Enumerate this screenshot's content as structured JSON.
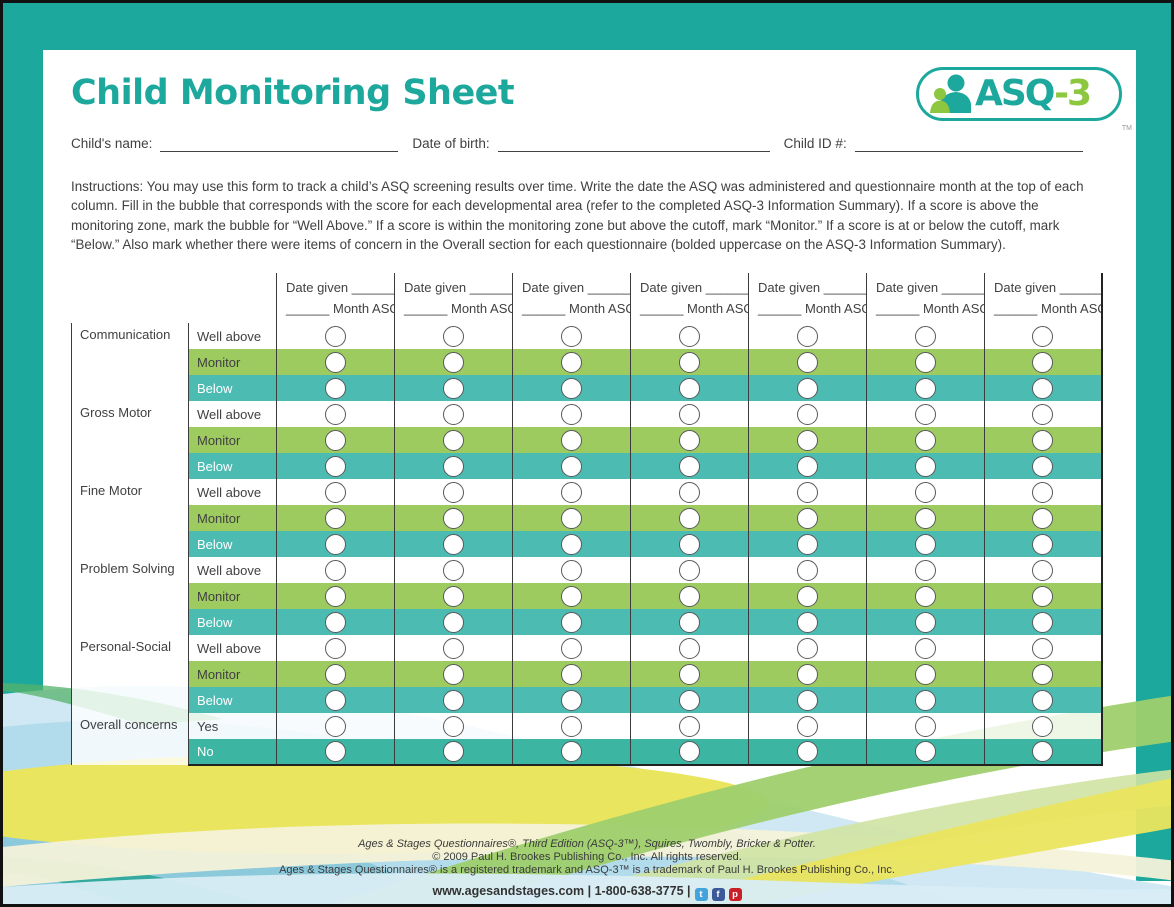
{
  "page": {
    "title": "Child Monitoring Sheet",
    "logo": {
      "asq": "ASQ",
      "three": "-3",
      "tm": "TM"
    }
  },
  "fields": {
    "child_name_label": "Child's name:",
    "dob_label": "Date of birth:",
    "child_id_label": "Child ID #:"
  },
  "instructions": "Instructions: You may use this form to track a child’s ASQ screening results over time. Write the date the ASQ was administered and questionnaire month at the top of each column. Fill in the bubble that corresponds with the score for each developmental area (refer to the completed ASQ-3 Information Summary). If a score is above the monitoring zone, mark the bubble for “Well Above.” If a score is within the monitoring zone but above the cutoff, mark “Monitor.” If a score is at or below the cutoff, mark “Below.” Also mark whether there were items of concern in the Overall section for each questionnaire (bolded uppercase on the ASQ-3 Information Summary).",
  "table": {
    "num_date_columns": 7,
    "column_header_line1": "Date given ______",
    "column_header_line2": "______ Month ASQ",
    "categories": [
      {
        "name": "Communication",
        "rows": [
          {
            "label": "Well above"
          },
          {
            "label": "Monitor"
          },
          {
            "label": "Below"
          }
        ]
      },
      {
        "name": "Gross Motor",
        "rows": [
          {
            "label": "Well above"
          },
          {
            "label": "Monitor"
          },
          {
            "label": "Below"
          }
        ]
      },
      {
        "name": "Fine Motor",
        "rows": [
          {
            "label": "Well above"
          },
          {
            "label": "Monitor"
          },
          {
            "label": "Below"
          }
        ]
      },
      {
        "name": "Problem Solving",
        "rows": [
          {
            "label": "Well above"
          },
          {
            "label": "Monitor"
          },
          {
            "label": "Below"
          }
        ]
      },
      {
        "name": "Personal-Social",
        "rows": [
          {
            "label": "Well above"
          },
          {
            "label": "Monitor"
          },
          {
            "label": "Below"
          }
        ]
      },
      {
        "name": "Overall concerns",
        "rows": [
          {
            "label": "Yes"
          },
          {
            "label": "No"
          }
        ]
      }
    ]
  },
  "footer": {
    "line1": "Ages & Stages Questionnaires®, Third Edition (ASQ-3™), Squires, Twombly, Bricker & Potter.",
    "line2": "© 2009 Paul H. Brookes Publishing Co., Inc. All rights reserved.",
    "line3": "Ages & Stages Questionnaires® is a registered trademark and ASQ-3™ is a trademark of Paul H. Brookes Publishing Co., Inc.",
    "contact": "www.agesandstages.com | 1-800-638-3775 |",
    "social": [
      {
        "name": "twitter",
        "glyph": "t"
      },
      {
        "name": "facebook",
        "glyph": "f"
      },
      {
        "name": "pinterest",
        "glyph": "p"
      }
    ]
  },
  "colors": {
    "brand_teal": "#1ca89c",
    "logo_green": "#8dc63f",
    "monitor_row_green": "#9dcb60",
    "below_row_teal": "#4cbcb2",
    "no_row_teal": "#3db5a3",
    "text": "#414042"
  }
}
